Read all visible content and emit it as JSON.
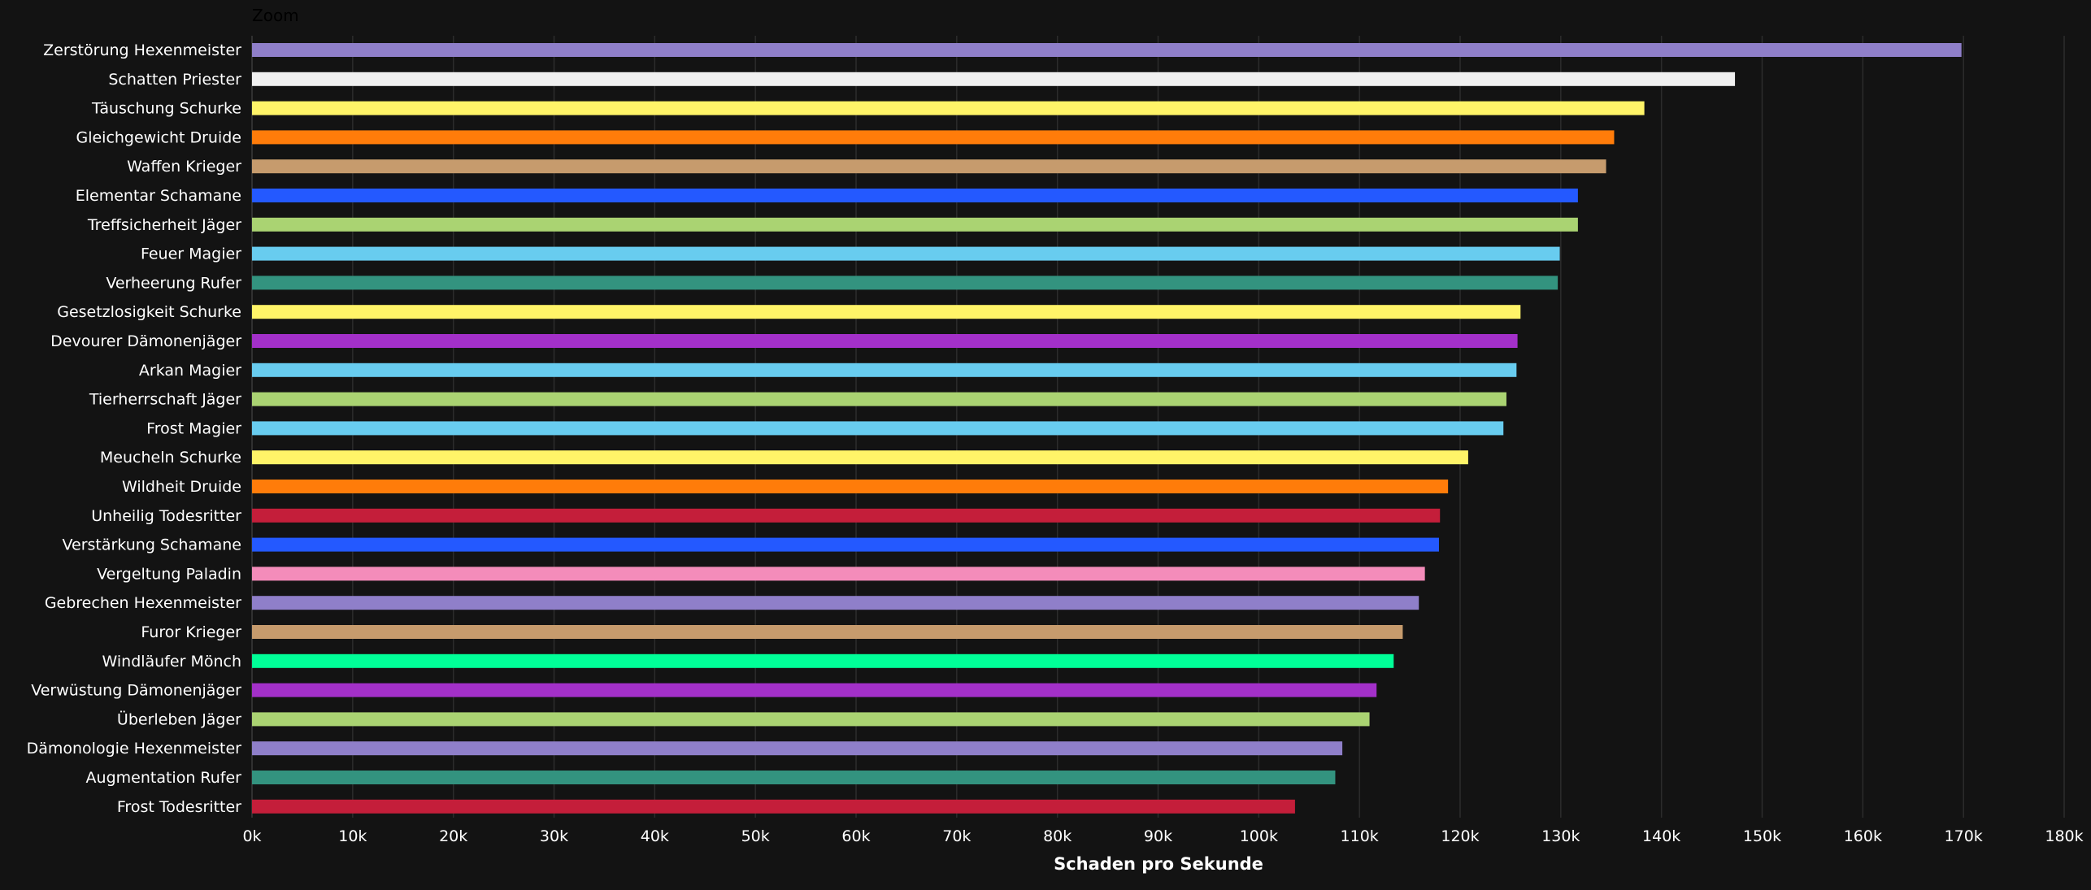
{
  "zoom_label": "Zoom",
  "chart_data": {
    "type": "bar",
    "orientation": "horizontal",
    "xlabel": "Schaden pro Sekunde",
    "xlim": [
      0,
      180000
    ],
    "x_ticks": [
      0,
      10000,
      20000,
      30000,
      40000,
      50000,
      60000,
      70000,
      80000,
      90000,
      100000,
      110000,
      120000,
      130000,
      140000,
      150000,
      160000,
      170000,
      180000
    ],
    "x_tick_labels": [
      "0k",
      "10k",
      "20k",
      "30k",
      "40k",
      "50k",
      "60k",
      "70k",
      "80k",
      "90k",
      "100k",
      "110k",
      "120k",
      "130k",
      "140k",
      "150k",
      "160k",
      "170k",
      "180k"
    ],
    "grid": true,
    "categories": [
      "Zerstörung Hexenmeister",
      "Schatten Priester",
      "Täuschung Schurke",
      "Gleichgewicht Druide",
      "Waffen Krieger",
      "Elementar Schamane",
      "Treffsicherheit Jäger",
      "Feuer Magier",
      "Verheerung Rufer",
      "Gesetzlosigkeit Schurke",
      "Devourer Dämonenjäger",
      "Arkan Magier",
      "Tierherrschaft Jäger",
      "Frost Magier",
      "Meucheln Schurke",
      "Wildheit Druide",
      "Unheilig Todesritter",
      "Verstärkung Schamane",
      "Vergeltung Paladin",
      "Gebrechen Hexenmeister",
      "Furor Krieger",
      "Windläufer Mönch",
      "Verwüstung Dämonenjäger",
      "Überleben Jäger",
      "Dämonologie Hexenmeister",
      "Augmentation Rufer",
      "Frost Todesritter"
    ],
    "values": [
      169800,
      147300,
      138300,
      135300,
      134500,
      131700,
      131700,
      129900,
      129700,
      126000,
      125700,
      125600,
      124600,
      124300,
      120800,
      118800,
      118000,
      117900,
      116500,
      115900,
      114300,
      113400,
      111700,
      111000,
      108300,
      107600,
      103600
    ],
    "colors": [
      "#8f7fc9",
      "#f0f0f0",
      "#fff468",
      "#ff7c0a",
      "#c69b6d",
      "#2459ff",
      "#aad372",
      "#68ccef",
      "#33937f",
      "#fff468",
      "#a330c9",
      "#68ccef",
      "#aad372",
      "#68ccef",
      "#fff468",
      "#ff7c0a",
      "#c41e3a",
      "#2459ff",
      "#f48cba",
      "#8f7fc9",
      "#c69b6d",
      "#00ff98",
      "#a330c9",
      "#aad372",
      "#8f7fc9",
      "#33937f",
      "#c41e3a"
    ]
  }
}
